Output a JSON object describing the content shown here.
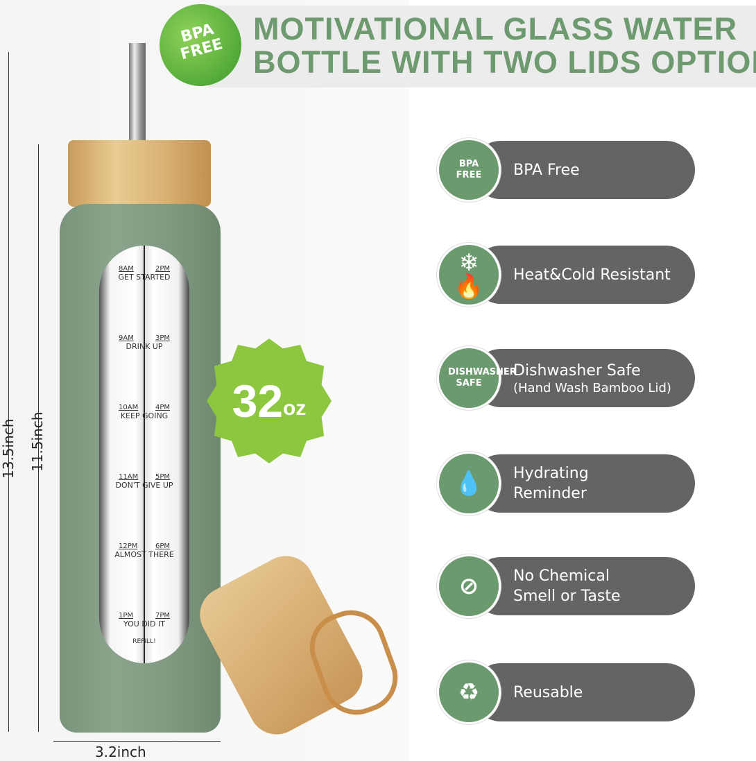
{
  "header": {
    "title_line1": "MOTIVATIONAL GLASS WATER",
    "title_line2": "BOTTLE WITH TWO LIDS OPTION",
    "badge_line1": "BPA",
    "badge_line2": "FREE"
  },
  "colors": {
    "title_green": "#6e9a6f",
    "icon_green": "#6a9a6e",
    "pill_grey": "#646464",
    "badge_lime": "#8dc63f",
    "bottle_green": "#86a088",
    "bamboo": "#d9b274"
  },
  "bottle": {
    "markers": [
      {
        "left": "8AM",
        "right": "2PM",
        "text": "GET STARTED"
      },
      {
        "left": "9AM",
        "right": "3PM",
        "text": "DRINK UP"
      },
      {
        "left": "10AM",
        "right": "4PM",
        "text": "KEEP GOING"
      },
      {
        "left": "11AM",
        "right": "5PM",
        "text": "DON'T GIVE UP"
      },
      {
        "left": "12PM",
        "right": "6PM",
        "text": "ALMOST THERE"
      },
      {
        "left": "1PM",
        "right": "7PM",
        "text": "YOU DID IT"
      }
    ],
    "refill": "REFILL!",
    "capacity_number": "32",
    "capacity_unit": "oz"
  },
  "dimensions": {
    "total_height": "13.5inch",
    "body_height": "11.5inch",
    "width": "3.2inch"
  },
  "features": [
    {
      "icon": "bpa-free-icon",
      "icon_text": "BPA FREE",
      "label": "BPA Free"
    },
    {
      "icon": "heat-cold-icon",
      "icon_text": "❄🔥",
      "label": "Heat&Cold Resistant"
    },
    {
      "icon": "dishwasher-icon",
      "icon_text": "DISHWASHER SAFE",
      "label": "Dishwasher Safe",
      "sub": "(Hand Wash Bamboo Lid)"
    },
    {
      "icon": "hydrating-reminder-icon",
      "icon_text": "💧",
      "label": "Hydrating",
      "label2": "Reminder"
    },
    {
      "icon": "no-chemical-icon",
      "icon_text": "⊘",
      "label": "No Chemical",
      "label2": "Smell or Taste"
    },
    {
      "icon": "recycle-icon",
      "icon_text": "♻",
      "label": "Reusable"
    }
  ]
}
